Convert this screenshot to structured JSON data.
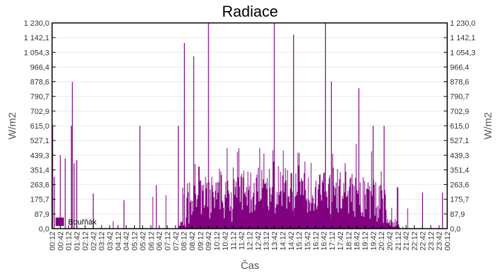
{
  "chart_data": {
    "type": "bar",
    "title": "Radiace",
    "xlabel": "Čas",
    "ylabel": "W/m2",
    "ylabel_right": "W/m2",
    "ylim": [
      0,
      1230.0
    ],
    "grid": true,
    "legend_position": "bottom-left inside",
    "series": [
      {
        "name": "Bouřňák",
        "color": "#800080",
        "description": "Solar radiation over 24h; near zero at night (00:12-08:00 and 21:30-00:12) with sporadic spikes, daytime values mostly 50-450 W/m2 with spikes reaching 1230 around 09:50, 13:30 and 16:45"
      }
    ],
    "y_ticks": [
      "0,0",
      "87,9",
      "175,7",
      "263,6",
      "351,4",
      "439,3",
      "527,1",
      "615,0",
      "702,9",
      "790,7",
      "878,6",
      "966,4",
      "1 054,3",
      "1 142,1",
      "1 230,0"
    ],
    "x_ticks": [
      "00:12",
      "00:42",
      "01:12",
      "01:42",
      "02:12",
      "02:42",
      "03:12",
      "03:42",
      "04:12",
      "04:42",
      "05:12",
      "05:42",
      "06:12",
      "06:42",
      "07:12",
      "07:42",
      "08:12",
      "08:42",
      "09:12",
      "09:42",
      "10:12",
      "10:42",
      "11:12",
      "11:42",
      "12:12",
      "12:42",
      "13:12",
      "13:42",
      "14:12",
      "14:42",
      "15:12",
      "15:42",
      "16:12",
      "16:42",
      "17:12",
      "17:42",
      "18:12",
      "18:42",
      "19:12",
      "19:42",
      "20:12",
      "20:42",
      "21:12",
      "21:42",
      "22:12",
      "22:42",
      "23:12",
      "23:42",
      "00:12"
    ],
    "spikes": [
      {
        "x": "00:14",
        "y": 615
      },
      {
        "x": "00:20",
        "y": 310
      },
      {
        "x": "00:42",
        "y": 440
      },
      {
        "x": "01:00",
        "y": 420
      },
      {
        "x": "01:22",
        "y": 615
      },
      {
        "x": "01:26",
        "y": 878
      },
      {
        "x": "01:32",
        "y": 390
      },
      {
        "x": "01:42",
        "y": 410
      },
      {
        "x": "02:42",
        "y": 210
      },
      {
        "x": "04:34",
        "y": 170
      },
      {
        "x": "05:32",
        "y": 615
      },
      {
        "x": "06:32",
        "y": 260
      },
      {
        "x": "07:52",
        "y": 615
      },
      {
        "x": "08:14",
        "y": 1110
      },
      {
        "x": "08:48",
        "y": 1030
      },
      {
        "x": "09:42",
        "y": 1230
      },
      {
        "x": "13:42",
        "y": 1230
      },
      {
        "x": "14:52",
        "y": 1160
      },
      {
        "x": "16:48",
        "y": 1230
      },
      {
        "x": "17:10",
        "y": 880
      },
      {
        "x": "18:50",
        "y": 840
      },
      {
        "x": "19:42",
        "y": 615
      },
      {
        "x": "20:22",
        "y": 615
      },
      {
        "x": "21:10",
        "y": 250
      },
      {
        "x": "22:42",
        "y": 215
      },
      {
        "x": "23:55",
        "y": 215
      }
    ]
  },
  "legend": {
    "label": "Bouřňák",
    "color": "#800080"
  }
}
